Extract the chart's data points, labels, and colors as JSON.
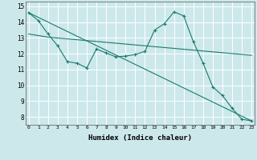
{
  "bg_color": "#cce8eb",
  "grid_color": "#ffffff",
  "line_color": "#1a7a6e",
  "line1_x": [
    0,
    1,
    2,
    3,
    4,
    5,
    6,
    7,
    8,
    9,
    10,
    11,
    12,
    13,
    14,
    15,
    16,
    17,
    18,
    19,
    20,
    21,
    22,
    23
  ],
  "line1_y": [
    14.6,
    14.1,
    13.25,
    12.5,
    11.5,
    11.4,
    11.1,
    12.3,
    12.05,
    11.8,
    11.85,
    11.95,
    12.15,
    13.5,
    13.9,
    14.65,
    14.4,
    12.75,
    11.4,
    9.9,
    9.35,
    8.55,
    7.85,
    7.75
  ],
  "line2_x": [
    0,
    23
  ],
  "line2_y": [
    14.6,
    7.75
  ],
  "line3_x": [
    0,
    2,
    23
  ],
  "line3_y": [
    13.25,
    13.05,
    11.9
  ],
  "xlim": [
    -0.3,
    23.3
  ],
  "ylim": [
    7.5,
    15.3
  ],
  "yticks": [
    8,
    9,
    10,
    11,
    12,
    13,
    14,
    15
  ],
  "xticks": [
    0,
    1,
    2,
    3,
    4,
    5,
    6,
    7,
    8,
    9,
    10,
    11,
    12,
    13,
    14,
    15,
    16,
    17,
    18,
    19,
    20,
    21,
    22,
    23
  ],
  "xlabel": "Humidex (Indice chaleur)"
}
